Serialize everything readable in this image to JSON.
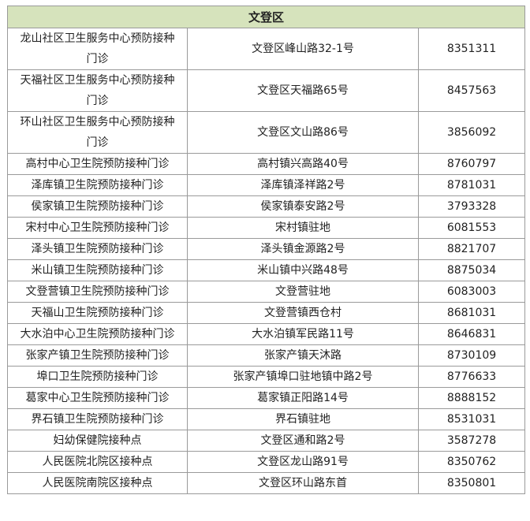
{
  "table": {
    "title": "文登区",
    "rows": [
      [
        "龙山社区卫生服务中心预防接种门诊",
        "文登区峰山路32-1号",
        "8351311"
      ],
      [
        "天福社区卫生服务中心预防接种门诊",
        "文登区天福路65号",
        "8457563"
      ],
      [
        "环山社区卫生服务中心预防接种门诊",
        "文登区文山路86号",
        "3856092"
      ],
      [
        "高村中心卫生院预防接种门诊",
        "高村镇兴高路40号",
        "8760797"
      ],
      [
        "泽库镇卫生院预防接种门诊",
        "泽库镇泽祥路2号",
        "8781031"
      ],
      [
        "侯家镇卫生院预防接种门诊",
        "侯家镇泰安路2号",
        "3793328"
      ],
      [
        "宋村中心卫生院预防接种门诊",
        "宋村镇驻地",
        "6081553"
      ],
      [
        "泽头镇卫生院预防接种门诊",
        "泽头镇金源路2号",
        "8821707"
      ],
      [
        "米山镇卫生院预防接种门诊",
        "米山镇中兴路48号",
        "8875034"
      ],
      [
        "文登营镇卫生院预防接种门诊",
        "文登营驻地",
        "6083003"
      ],
      [
        "天福山卫生院预防接种门诊",
        "文登营镇西仓村",
        "8681031"
      ],
      [
        "大水泊中心卫生院预防接种门诊",
        "大水泊镇军民路11号",
        "8646831"
      ],
      [
        "张家产镇卫生院预防接种门诊",
        "张家产镇天沐路",
        "8730109"
      ],
      [
        "埠口卫生院预防接种门诊",
        "张家产镇埠口驻地镇中路2号",
        "8776633"
      ],
      [
        "葛家中心卫生院预防接种门诊",
        "葛家镇正阳路14号",
        "8888152"
      ],
      [
        "界石镇卫生院预防接种门诊",
        "界石镇驻地",
        "8531031"
      ],
      [
        "妇幼保健院接种点",
        "文登区通和路2号",
        "3587278"
      ],
      [
        "人民医院北院区接种点",
        "文登区龙山路91号",
        "8350762"
      ],
      [
        "人民医院南院区接种点",
        "文登区环山路东首",
        "8350801"
      ]
    ]
  }
}
